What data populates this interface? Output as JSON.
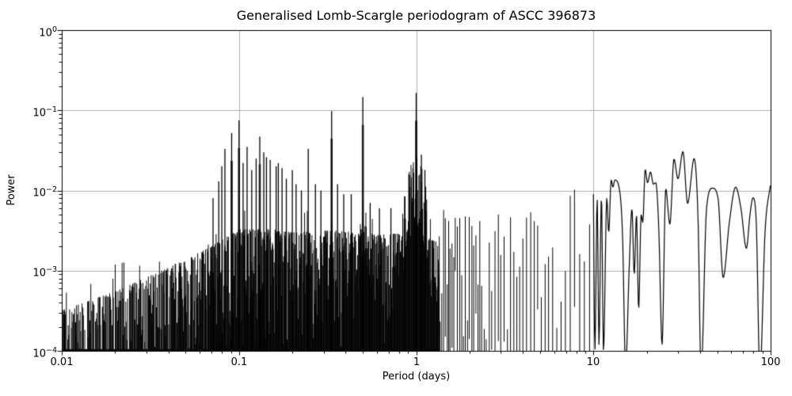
{
  "chart_data": {
    "type": "line",
    "title": "Generalised Lomb-Scargle periodogram of ASCC 396873",
    "xlabel": "Period (days)",
    "ylabel": "Power",
    "xscale": "log",
    "yscale": "log",
    "xlim": [
      0.01,
      100
    ],
    "ylim": [
      0.0001,
      1
    ],
    "grid": true,
    "grid_color": "#b0b0b0",
    "line_color": "#000000",
    "background_color": "#ffffff",
    "x_tick_labels": [
      "0.01",
      "0.1",
      "1",
      "10",
      "100"
    ],
    "y_ticks": [
      {
        "base": "10",
        "exp": "0"
      },
      {
        "base": "10",
        "exp": "−1"
      },
      {
        "base": "10",
        "exp": "−2"
      },
      {
        "base": "10",
        "exp": "−3"
      },
      {
        "base": "10",
        "exp": "−4"
      }
    ],
    "main_peaks": [
      [
        0.0714,
        0.008
      ],
      [
        0.0769,
        0.013
      ],
      [
        0.08,
        0.02
      ],
      [
        0.0833,
        0.033
      ],
      [
        0.0909,
        0.052
      ],
      [
        0.1,
        0.075
      ],
      [
        0.1055,
        0.022
      ],
      [
        0.1111,
        0.035
      ],
      [
        0.118,
        0.018
      ],
      [
        0.125,
        0.025
      ],
      [
        0.131,
        0.047
      ],
      [
        0.138,
        0.03
      ],
      [
        0.1429,
        0.026
      ],
      [
        0.15,
        0.024
      ],
      [
        0.162,
        0.02
      ],
      [
        0.1667,
        0.022
      ],
      [
        0.175,
        0.019
      ],
      [
        0.185,
        0.014
      ],
      [
        0.2,
        0.018
      ],
      [
        0.21,
        0.012
      ],
      [
        0.225,
        0.01
      ],
      [
        0.246,
        0.033
      ],
      [
        0.27,
        0.012
      ],
      [
        0.29,
        0.01
      ],
      [
        0.3333,
        0.098
      ],
      [
        0.36,
        0.012
      ],
      [
        0.39,
        0.009
      ],
      [
        0.43,
        0.009
      ],
      [
        0.5,
        0.146
      ],
      [
        0.55,
        0.007
      ],
      [
        0.62,
        0.006
      ],
      [
        0.72,
        0.006
      ],
      [
        0.86,
        0.0085
      ],
      [
        1.0,
        0.165
      ],
      [
        1.07,
        0.028
      ],
      [
        1.12,
        0.018
      ]
    ],
    "pedestals": [
      {
        "p": 0.25,
        "a": 0.005,
        "w": 0.008
      },
      {
        "p": 0.3333,
        "a": 0.006,
        "w": 0.01
      },
      {
        "p": 0.5,
        "a": 0.009,
        "w": 0.022
      },
      {
        "p": 1.0,
        "a": 0.027,
        "w": 0.042
      }
    ],
    "noise_envelope": [
      [
        0.01,
        0.00032
      ],
      [
        0.02,
        0.00055
      ],
      [
        0.04,
        0.0011
      ],
      [
        0.07,
        0.002
      ],
      [
        0.1,
        0.0033
      ],
      [
        0.15,
        0.0033
      ],
      [
        0.2,
        0.003
      ],
      [
        0.35,
        0.0032
      ],
      [
        0.6,
        0.0028
      ],
      [
        1.0,
        0.003
      ],
      [
        1.35,
        0.0022
      ]
    ],
    "middle_envelope": [
      [
        1.35,
        0.0045
      ],
      [
        2.0,
        0.005
      ],
      [
        3.0,
        0.0045
      ],
      [
        4.0,
        0.005
      ],
      [
        5.0,
        0.006
      ],
      [
        6.0,
        0.005
      ],
      [
        7.0,
        0.009
      ],
      [
        8.0,
        0.008
      ],
      [
        9.0,
        0.0105
      ],
      [
        10.0,
        0.009
      ]
    ],
    "smooth_curve": [
      [
        10.0,
        0.009
      ],
      [
        10.2,
        0.0001
      ],
      [
        10.5,
        0.008
      ],
      [
        10.75,
        0.00012
      ],
      [
        11.1,
        0.0085
      ],
      [
        11.4,
        0.0001
      ],
      [
        11.9,
        0.008
      ],
      [
        12.2,
        0.003
      ],
      [
        12.6,
        0.0135
      ],
      [
        12.9,
        0.011
      ],
      [
        13.2,
        0.0135
      ],
      [
        14.0,
        0.0105
      ],
      [
        14.6,
        0.0028
      ],
      [
        15.2,
        6e-05
      ],
      [
        15.9,
        0.001
      ],
      [
        16.5,
        0.0059
      ],
      [
        17.0,
        0.0009
      ],
      [
        17.5,
        0.005
      ],
      [
        18.0,
        0.00033
      ],
      [
        18.6,
        0.005
      ],
      [
        19.0,
        0.004
      ],
      [
        19.6,
        0.0184
      ],
      [
        20.2,
        0.0125
      ],
      [
        21.0,
        0.017
      ],
      [
        21.8,
        0.012
      ],
      [
        22.5,
        0.0125
      ],
      [
        23.4,
        0.0032
      ],
      [
        24.4,
        0.00012
      ],
      [
        25.6,
        0.0105
      ],
      [
        27.0,
        0.0038
      ],
      [
        28.5,
        0.0247
      ],
      [
        30.0,
        0.014
      ],
      [
        32.0,
        0.0306
      ],
      [
        34.0,
        0.0069
      ],
      [
        37.0,
        0.025
      ],
      [
        39.0,
        0.004
      ],
      [
        40.5,
        5e-05
      ],
      [
        43.5,
        0.006
      ],
      [
        47.0,
        0.0107
      ],
      [
        50.5,
        0.008
      ],
      [
        54.0,
        0.00082
      ],
      [
        58.5,
        0.004
      ],
      [
        63.5,
        0.011
      ],
      [
        68.0,
        0.006
      ],
      [
        73.0,
        0.0019
      ],
      [
        76.5,
        0.005
      ],
      [
        79.5,
        0.0081
      ],
      [
        83.0,
        0.004
      ],
      [
        87.0,
        5e-05
      ],
      [
        93.0,
        0.003
      ],
      [
        100.0,
        0.0125
      ]
    ],
    "render": {
      "seed": 42,
      "dense_max_period": 1.35,
      "discrete_max_period": 10
    }
  }
}
